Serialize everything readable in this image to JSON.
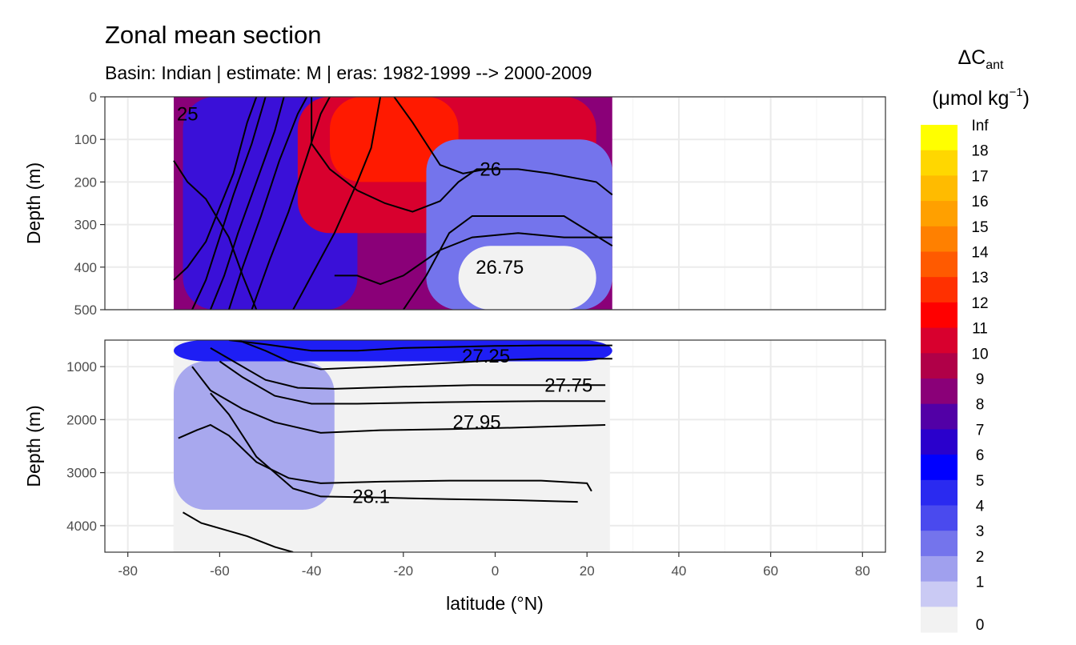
{
  "chart_data": {
    "type": "heatmap",
    "title": "Zonal mean section",
    "subtitle": "Basin: Indian | estimate: M  | eras: 1982-1999 --> 2000-2009",
    "xlabel": "latitude (°N)",
    "xlim": [
      -85,
      85
    ],
    "x_ticks": [
      "-80",
      "-60",
      "-40",
      "-20",
      "0",
      "20",
      "40",
      "60",
      "80"
    ],
    "x_tick_values": [
      -80,
      -60,
      -40,
      -20,
      0,
      20,
      40,
      60,
      80
    ],
    "data_extent_lat": [
      -70,
      25.5
    ],
    "panels": [
      {
        "ylabel": "Depth (m)",
        "ylim": [
          0,
          500
        ],
        "y_ticks": [
          "0",
          "100",
          "200",
          "300",
          "400",
          "500"
        ],
        "y_tick_values": [
          0,
          100,
          200,
          300,
          400,
          500
        ]
      },
      {
        "ylabel": "Depth (m)",
        "ylim": [
          500,
          4500
        ],
        "y_ticks": [
          "1000",
          "2000",
          "3000",
          "4000"
        ],
        "y_tick_values": [
          1000,
          2000,
          3000,
          4000
        ]
      }
    ],
    "legend": {
      "title_main": "ΔC",
      "title_sub": "ant",
      "unit_main": "(μmol kg",
      "unit_sup": "−1",
      "unit_close": ")",
      "labels": [
        "Inf",
        "18",
        "17",
        "16",
        "15",
        "14",
        "13",
        "12",
        "11",
        "10",
        "9",
        "8",
        "7",
        "6",
        "5",
        "4",
        "3",
        "2",
        "1",
        "0"
      ],
      "colors": [
        "#ffff00",
        "#ffd700",
        "#ffbb00",
        "#ffa000",
        "#ff8000",
        "#ff5a00",
        "#ff3000",
        "#ff0000",
        "#d8002e",
        "#b00048",
        "#8a0078",
        "#5200a6",
        "#2a00cc",
        "#0000ff",
        "#2a2af0",
        "#4a4aee",
        "#7474ec",
        "#a0a0ee",
        "#cacaf4",
        "#f2f2f2"
      ],
      "position": "right"
    },
    "sections_sketch": {
      "upper_layers": [
        {
          "bin": "9-10",
          "lat": [
            -70,
            25.5
          ],
          "depth": [
            0,
            500
          ]
        },
        {
          "bin": "7-8",
          "lat": [
            -68,
            -30
          ],
          "depth": [
            0,
            500
          ]
        },
        {
          "bin": "11-12",
          "lat": [
            -43,
            22
          ],
          "depth": [
            0,
            320
          ]
        },
        {
          "bin": "12-13",
          "lat": [
            -36,
            -8
          ],
          "depth": [
            0,
            200
          ]
        },
        {
          "bin": "2-5",
          "lat": [
            -15,
            25.5
          ],
          "depth": [
            100,
            500
          ]
        },
        {
          "bin": "0-1",
          "lat": [
            -8,
            22
          ],
          "depth": [
            350,
            500
          ]
        }
      ],
      "lower_layers": [
        {
          "bin": "0-1",
          "lat": [
            -70,
            25
          ],
          "depth": [
            500,
            4500
          ]
        },
        {
          "bin": "6-7",
          "lat": [
            -70,
            25.5
          ],
          "depth": [
            500,
            900
          ]
        },
        {
          "bin": "1-3",
          "lat": [
            -70,
            -35
          ],
          "depth": [
            900,
            3700
          ]
        }
      ]
    },
    "contour_labels": [
      {
        "text": "26",
        "lat": -1,
        "depth": 170,
        "panel": 0
      },
      {
        "text": "26.75",
        "lat": 1,
        "depth": 400,
        "panel": 0
      },
      {
        "text": "27.25",
        "lat": -2,
        "depth": 800,
        "panel": 1
      },
      {
        "text": "27.75",
        "lat": 16,
        "depth": 1350,
        "panel": 1
      },
      {
        "text": "27.95",
        "lat": -4,
        "depth": 2050,
        "panel": 1
      },
      {
        "text": "28.1",
        "lat": -27,
        "depth": 3450,
        "panel": 1
      },
      {
        "text": "25",
        "lat": -67,
        "depth": 40,
        "panel": 0
      }
    ],
    "contours": [
      {
        "panel": 0,
        "points": [
          [
            -70,
            150
          ],
          [
            -67,
            200
          ],
          [
            -63,
            240
          ],
          [
            -58,
            330
          ],
          [
            -55,
            420
          ],
          [
            -52,
            500
          ]
        ]
      },
      {
        "panel": 0,
        "points": [
          [
            -70,
            430
          ],
          [
            -67,
            400
          ],
          [
            -63,
            340
          ],
          [
            -60,
            260
          ],
          [
            -57,
            180
          ],
          [
            -54,
            60
          ],
          [
            -52,
            0
          ]
        ]
      },
      {
        "panel": 0,
        "points": [
          [
            -66,
            500
          ],
          [
            -63,
            430
          ],
          [
            -60,
            330
          ],
          [
            -57,
            230
          ],
          [
            -53,
            110
          ],
          [
            -50,
            0
          ]
        ]
      },
      {
        "panel": 0,
        "points": [
          [
            -62,
            500
          ],
          [
            -59,
            420
          ],
          [
            -56,
            320
          ],
          [
            -52,
            200
          ],
          [
            -48,
            80
          ],
          [
            -46,
            0
          ]
        ]
      },
      {
        "panel": 0,
        "points": [
          [
            -58,
            500
          ],
          [
            -55,
            400
          ],
          [
            -51,
            280
          ],
          [
            -47,
            150
          ],
          [
            -43,
            40
          ],
          [
            -41,
            0
          ]
        ]
      },
      {
        "panel": 0,
        "points": [
          [
            -53,
            500
          ],
          [
            -49,
            380
          ],
          [
            -45,
            270
          ],
          [
            -41,
            140
          ],
          [
            -38,
            40
          ],
          [
            -36,
            0
          ]
        ]
      },
      {
        "panel": 0,
        "points": [
          [
            -44,
            500
          ],
          [
            -40,
            420
          ],
          [
            -35,
            320
          ],
          [
            -30,
            200
          ],
          [
            -27,
            120
          ],
          [
            -25,
            0
          ]
        ]
      },
      {
        "panel": 0,
        "points": [
          [
            -35,
            420
          ],
          [
            -30,
            420
          ],
          [
            -25,
            440
          ],
          [
            -20,
            420
          ],
          [
            -12,
            360
          ],
          [
            -5,
            330
          ],
          [
            5,
            320
          ],
          [
            15,
            330
          ],
          [
            25.5,
            330
          ]
        ]
      },
      {
        "panel": 0,
        "points": [
          [
            -20,
            500
          ],
          [
            -15,
            420
          ],
          [
            -10,
            320
          ],
          [
            -5,
            280
          ],
          [
            5,
            280
          ],
          [
            15,
            280
          ],
          [
            25.5,
            350
          ]
        ]
      },
      {
        "panel": 0,
        "points": [
          [
            -22,
            0
          ],
          [
            -18,
            60
          ],
          [
            -15,
            110
          ],
          [
            -12,
            160
          ],
          [
            -7,
            180
          ],
          [
            -2,
            170
          ],
          [
            5,
            170
          ],
          [
            12,
            180
          ],
          [
            22,
            200
          ],
          [
            25.5,
            230
          ]
        ]
      },
      {
        "panel": 0,
        "points": [
          [
            -40,
            0
          ],
          [
            -40,
            110
          ],
          [
            -36,
            170
          ],
          [
            -30,
            220
          ],
          [
            -24,
            250
          ],
          [
            -18,
            270
          ],
          [
            -12,
            245
          ],
          [
            -8,
            200
          ],
          [
            -4,
            170
          ],
          [
            0,
            170
          ]
        ]
      },
      {
        "panel": 1,
        "points": [
          [
            -58,
            500
          ],
          [
            -50,
            580
          ],
          [
            -40,
            700
          ],
          [
            -30,
            700
          ],
          [
            -20,
            650
          ],
          [
            -10,
            630
          ],
          [
            0,
            610
          ],
          [
            10,
            600
          ],
          [
            25.5,
            600
          ]
        ]
      },
      {
        "panel": 1,
        "points": [
          [
            -56,
            500
          ],
          [
            -50,
            700
          ],
          [
            -45,
            900
          ],
          [
            -38,
            1050
          ],
          [
            -25,
            1000
          ],
          [
            -10,
            930
          ],
          [
            0,
            880
          ],
          [
            10,
            850
          ],
          [
            25.5,
            850
          ]
        ]
      },
      {
        "panel": 1,
        "points": [
          [
            -62,
            650
          ],
          [
            -57,
            900
          ],
          [
            -50,
            1250
          ],
          [
            -43,
            1400
          ],
          [
            -35,
            1420
          ],
          [
            -20,
            1380
          ],
          [
            -5,
            1350
          ],
          [
            10,
            1350
          ],
          [
            24,
            1350
          ]
        ]
      },
      {
        "panel": 1,
        "points": [
          [
            -60,
            900
          ],
          [
            -55,
            1200
          ],
          [
            -48,
            1550
          ],
          [
            -40,
            1700
          ],
          [
            -30,
            1700
          ],
          [
            -10,
            1670
          ],
          [
            10,
            1650
          ],
          [
            24,
            1650
          ]
        ]
      },
      {
        "panel": 1,
        "points": [
          [
            -69,
            2350
          ],
          [
            -65,
            2200
          ],
          [
            -62,
            2100
          ],
          [
            -58,
            2300
          ],
          [
            -52,
            2800
          ],
          [
            -45,
            3100
          ],
          [
            -38,
            3200
          ],
          [
            -25,
            3170
          ],
          [
            -10,
            3150
          ],
          [
            10,
            3150
          ],
          [
            20,
            3200
          ],
          [
            21,
            3350
          ]
        ]
      },
      {
        "panel": 1,
        "points": [
          [
            -66,
            1000
          ],
          [
            -62,
            1450
          ],
          [
            -55,
            1800
          ],
          [
            -48,
            2050
          ],
          [
            -38,
            2250
          ],
          [
            -25,
            2200
          ],
          [
            -10,
            2180
          ],
          [
            5,
            2150
          ],
          [
            24,
            2100
          ]
        ]
      },
      {
        "panel": 1,
        "points": [
          [
            -68,
            3750
          ],
          [
            -64,
            3950
          ],
          [
            -60,
            4050
          ],
          [
            -54,
            4200
          ],
          [
            -48,
            4400
          ],
          [
            -44,
            4500
          ]
        ]
      },
      {
        "panel": 1,
        "points": [
          [
            -62,
            1500
          ],
          [
            -58,
            1900
          ],
          [
            -55,
            2300
          ],
          [
            -52,
            2700
          ],
          [
            -48,
            3000
          ],
          [
            -44,
            3300
          ],
          [
            -38,
            3450
          ],
          [
            -25,
            3470
          ],
          [
            -10,
            3500
          ],
          [
            5,
            3520
          ],
          [
            18,
            3550
          ]
        ]
      }
    ]
  }
}
